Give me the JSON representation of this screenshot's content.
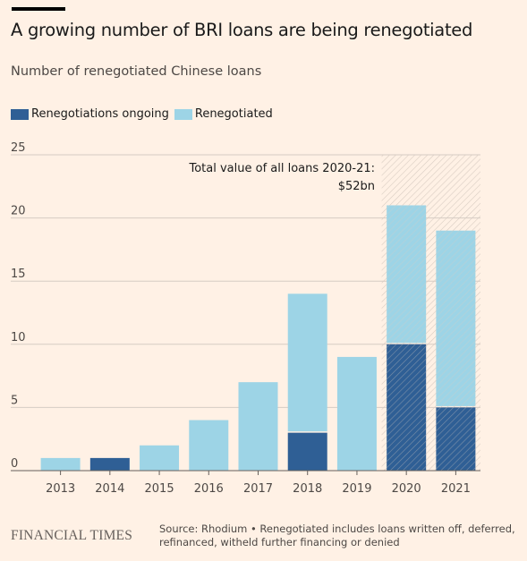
{
  "title": "A growing number of BRI loans are being renegotiated",
  "subtitle": "Number of renegotiated Chinese loans",
  "legend": [
    {
      "label": "Renegotiations ongoing",
      "color": "#2f5f95"
    },
    {
      "label": "Renegotiated",
      "color": "#9dd4e6"
    }
  ],
  "annotation": {
    "line1": "Total value of all loans 2020-21:",
    "line2": "$52bn"
  },
  "footer": {
    "logo": "FINANCIAL TIMES",
    "source": "Source: Rhodium • Renegotiated includes loans written off, deferred, refinanced, witheld further financing or denied"
  },
  "chart_data": {
    "type": "bar",
    "stacked": true,
    "categories": [
      "2013",
      "2014",
      "2015",
      "2016",
      "2017",
      "2018",
      "2019",
      "2020",
      "2021"
    ],
    "series": [
      {
        "name": "Renegotiations ongoing",
        "color": "#2f5f95",
        "values": [
          0,
          1,
          0,
          0,
          0,
          3,
          0,
          10,
          5
        ]
      },
      {
        "name": "Renegotiated",
        "color": "#9dd4e6",
        "values": [
          1,
          0,
          2,
          4,
          7,
          11,
          9,
          11,
          14
        ]
      }
    ],
    "ylim": [
      0,
      25
    ],
    "yticks": [
      0,
      5,
      10,
      15,
      20,
      25
    ],
    "highlight_categories": [
      "2020",
      "2021"
    ],
    "grid": true
  }
}
